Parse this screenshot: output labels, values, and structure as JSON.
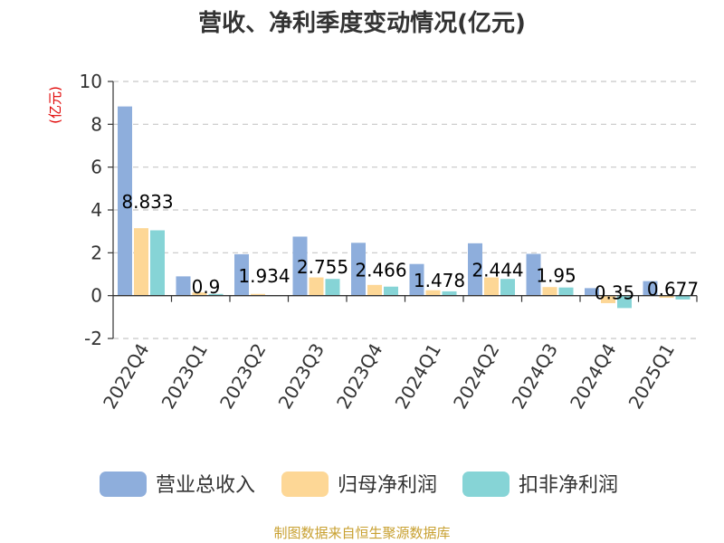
{
  "chart_data": {
    "type": "bar",
    "title": "营收、净利季度变动情况(亿元)",
    "ylabel": "(亿元)",
    "ylim": [
      -2,
      10
    ],
    "yticks": [
      -2,
      0,
      2,
      4,
      6,
      8,
      10
    ],
    "categories": [
      "2022Q4",
      "2023Q1",
      "2023Q2",
      "2023Q3",
      "2023Q4",
      "2024Q1",
      "2024Q2",
      "2024Q3",
      "2024Q4",
      "2025Q1"
    ],
    "series": [
      {
        "name": "营业总收入",
        "color": "#8eaedc",
        "values": [
          8.833,
          0.9,
          1.934,
          2.755,
          2.466,
          1.478,
          2.444,
          1.95,
          0.35,
          0.677
        ]
      },
      {
        "name": "归母净利润",
        "color": "#fdd796",
        "values": [
          3.15,
          0.15,
          0.08,
          0.85,
          0.5,
          0.25,
          0.85,
          0.4,
          -0.35,
          -0.1
        ]
      },
      {
        "name": "扣非净利润",
        "color": "#86d4d6",
        "values": [
          3.05,
          0.08,
          0.02,
          0.78,
          0.42,
          0.2,
          0.78,
          0.38,
          -0.58,
          -0.18
        ]
      }
    ],
    "data_labels": [
      "8.833",
      "0.9",
      "1.934",
      "2.755",
      "2.466",
      "1.478",
      "2.444",
      "1.95",
      "0.35",
      "0.677"
    ],
    "grid": true,
    "legend": "bottom",
    "source": "制图数据来自恒生聚源数据库"
  }
}
